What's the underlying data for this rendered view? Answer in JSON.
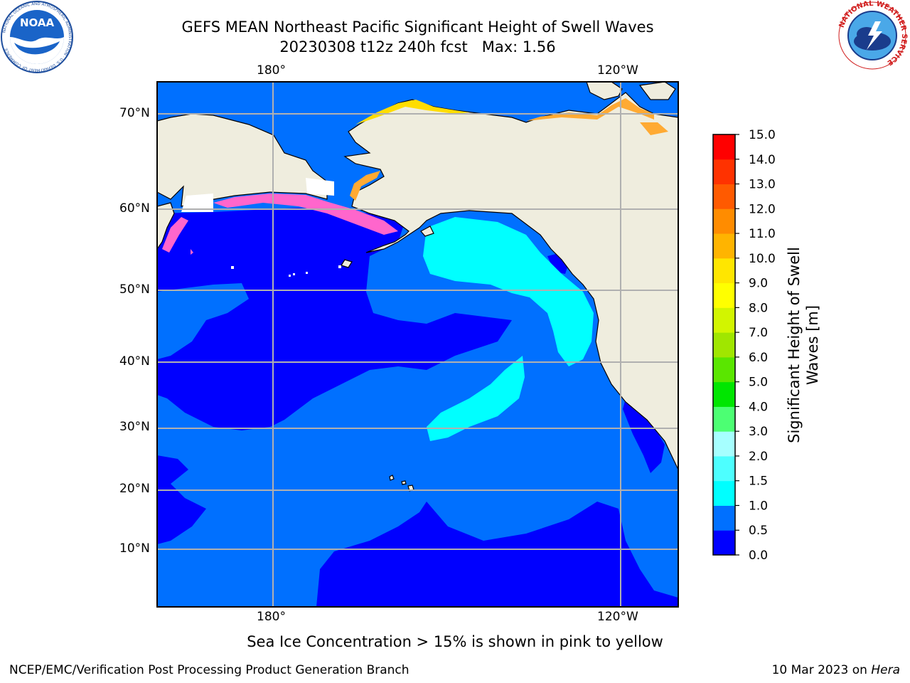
{
  "title": {
    "line1": "GEFS MEAN Northeast Pacific Significant Height of Swell Waves",
    "line2": "20230308 t12z 240h fcst   Max: 1.56"
  },
  "logos": {
    "noaa_text": "NOAA",
    "noaa_ring": "NATIONAL OCEANIC AND ATMOSPHERIC ADMINISTRATION · U.S. DEPARTMENT OF COMMERCE",
    "nws_ring": "NATIONAL WEATHER SERVICE"
  },
  "map": {
    "top_lon_labels": [
      "180°",
      "120°W"
    ],
    "bottom_lon_labels": [
      "180°",
      "120°W"
    ],
    "lat_labels": [
      "70°N",
      "60°N",
      "50°N",
      "40°N",
      "30°N",
      "20°N",
      "10°N"
    ],
    "colors": {
      "land": "#efedde",
      "ocean_0_05": "#0000ff",
      "ocean_05_10": "#0070ff",
      "ocean_10_15": "#00ffff",
      "ice_pink": "#ff66cc",
      "ice_orange": "#ffaa33",
      "ice_yellow": "#ffdd00",
      "grid": "#b0b0b0"
    }
  },
  "colorbar": {
    "label_line1": "Significant Height of Swell",
    "label_line2": "Waves [m]",
    "ticks": [
      "0.0",
      "0.5",
      "1.0",
      "1.5",
      "2.0",
      "3.0",
      "4.0",
      "5.0",
      "6.0",
      "7.0",
      "8.0",
      "9.0",
      "10.0",
      "11.0",
      "12.0",
      "13.0",
      "14.0",
      "15.0"
    ],
    "colors": [
      "#0000ff",
      "#0070ff",
      "#00ffff",
      "#4dffff",
      "#a6ffff",
      "#4cff73",
      "#00e600",
      "#5ae600",
      "#a0e600",
      "#d2f500",
      "#ffff00",
      "#ffe600",
      "#ffb400",
      "#ff8c00",
      "#ff5a00",
      "#ff3200",
      "#ff0000"
    ]
  },
  "footnote": "Sea Ice Concentration > 15% is shown in pink to yellow",
  "credit_left": "NCEP/EMC/Verification Post Processing Product Generation Branch",
  "credit_right_date": "10 Mar 2023 on ",
  "credit_right_machine": "Hera"
}
